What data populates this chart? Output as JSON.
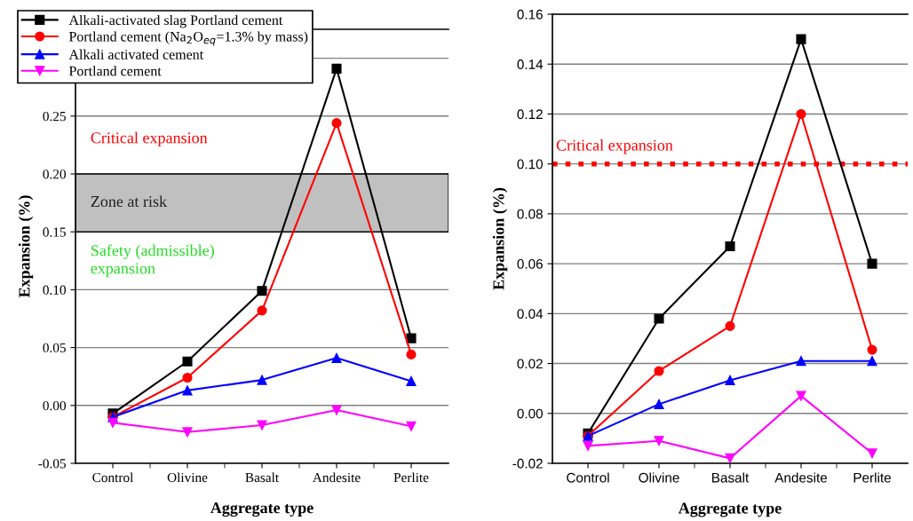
{
  "chart_data": [
    {
      "type": "line",
      "xlabel": "Aggregate type",
      "ylabel": "Expansion (%)",
      "categories": [
        "Control",
        "Olivine",
        "Basalt",
        "Andesite",
        "Perlite"
      ],
      "series": [
        {
          "name": "Alkali-activated slag Portland cement",
          "color": "#000000",
          "marker": "square",
          "values": [
            -0.007,
            0.038,
            0.099,
            0.291,
            0.058
          ]
        },
        {
          "name": "Portland cement (Na$_{2}$O$_{eq}$=1.3% by mass)",
          "color": "#ff0000",
          "marker": "circle",
          "values": [
            -0.01,
            0.024,
            0.082,
            0.244,
            0.044
          ]
        },
        {
          "name": "Alkali activated cement",
          "color": "#0000ff",
          "marker": "triangle",
          "values": [
            -0.01,
            0.013,
            0.022,
            0.041,
            0.021
          ]
        },
        {
          "name": "Portland cement",
          "color": "#ff00ff",
          "marker": "triangle_down",
          "values": [
            -0.015,
            -0.023,
            -0.017,
            -0.004,
            -0.018
          ]
        }
      ],
      "ylim": [
        -0.05,
        0.325
      ],
      "yticks": [
        {
          "value": -0.05,
          "label": "-0.05"
        },
        {
          "value": 0.0,
          "label": "0.00"
        },
        {
          "value": 0.05,
          "label": "0.05"
        },
        {
          "value": 0.1,
          "label": "0.10"
        },
        {
          "value": 0.15,
          "label": "0.15"
        },
        {
          "value": 0.2,
          "label": "0.20"
        },
        {
          "value": 0.25,
          "label": "0.25"
        },
        {
          "value": 0.3,
          "label": null
        }
      ],
      "bands": [
        {
          "axis": "y",
          "from": 0.15,
          "to": 0.2,
          "label": "Zone at risk",
          "color": "#c0c0c0"
        }
      ],
      "annotations": [
        "Critical expansion",
        "Safety (admissible)\nexpansion"
      ],
      "grid": "y",
      "legend": "top left"
    },
    {
      "type": "line",
      "xlabel": "Aggregate type",
      "ylabel": "Expansion (%)",
      "categories": [
        "Control",
        "Olivine",
        "Basalt",
        "Andesite",
        "Perlite"
      ],
      "series": [
        {
          "color": "#000000",
          "marker": "square",
          "values": [
            -0.008,
            0.038,
            0.067,
            0.15,
            0.06
          ]
        },
        {
          "color": "#ff0000",
          "marker": "circle",
          "values": [
            -0.009,
            0.017,
            0.035,
            0.12,
            0.0255
          ]
        },
        {
          "color": "#0000ff",
          "marker": "triangle",
          "values": [
            -0.009,
            0.0037,
            0.0133,
            0.021,
            0.021
          ]
        },
        {
          "color": "#ff00ff",
          "marker": "triangle_down",
          "values": [
            -0.013,
            -0.011,
            -0.018,
            0.007,
            -0.016
          ]
        }
      ],
      "ylim": [
        -0.02,
        0.16
      ],
      "yticks": [
        {
          "value": -0.02,
          "label": "-0.02"
        },
        {
          "value": 0.0,
          "label": "0.00"
        },
        {
          "value": 0.02,
          "label": "0.02"
        },
        {
          "value": 0.04,
          "label": "0.04"
        },
        {
          "value": 0.06,
          "label": "0.06"
        },
        {
          "value": 0.08,
          "label": "0.08"
        },
        {
          "value": 0.1,
          "label": "0.10"
        },
        {
          "value": 0.12,
          "label": "0.12"
        },
        {
          "value": 0.14,
          "label": "0.14"
        },
        {
          "value": 0.16,
          "label": "0.16"
        }
      ],
      "ref_lines": [
        {
          "axis": "y",
          "value": 0.1,
          "label": "Critical expansion",
          "color": "#ff0000",
          "line_style": "dotted"
        }
      ],
      "grid": "y",
      "legend": false
    }
  ]
}
